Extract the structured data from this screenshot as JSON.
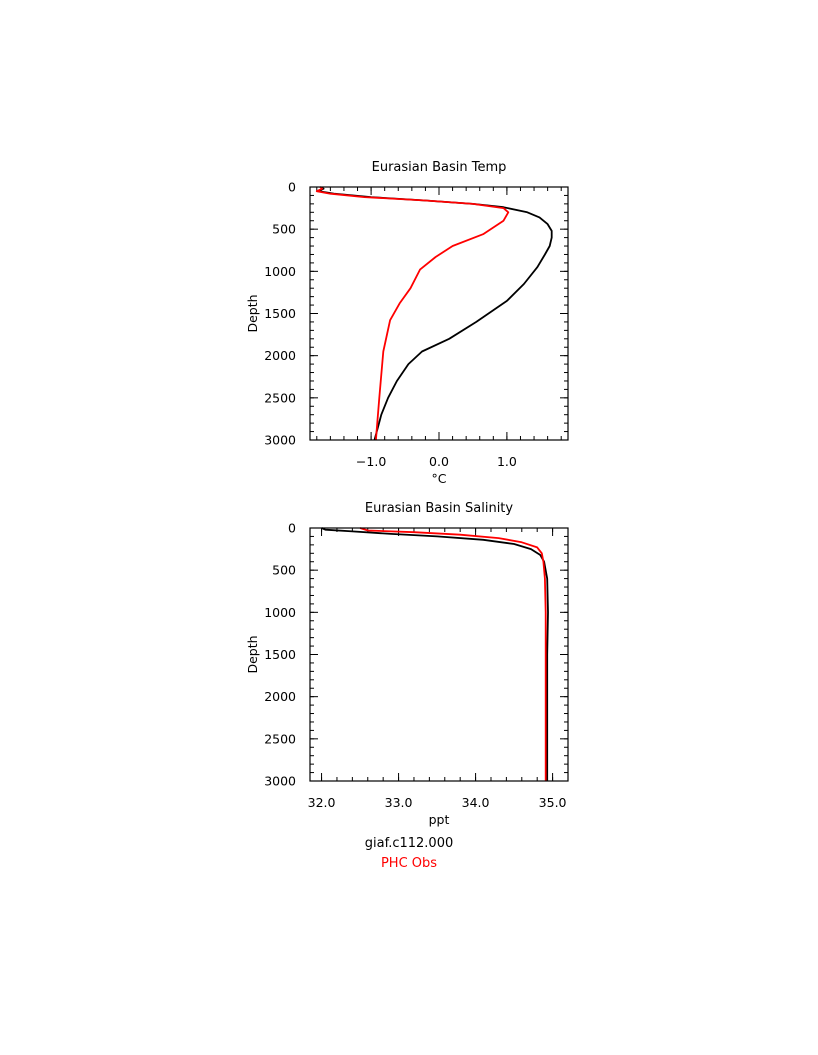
{
  "chart_data": [
    {
      "type": "line",
      "title": "Eurasian Basin Temp",
      "xlabel": "°C",
      "ylabel": "Depth",
      "xlim": [
        -1.9,
        1.9
      ],
      "ylim": [
        3000,
        0
      ],
      "y_inverted": true,
      "xticks": [
        -1.0,
        0.0,
        1.0
      ],
      "xtick_labels": [
        "−1.0",
        "0.0",
        "1.0"
      ],
      "yticks": [
        0,
        500,
        1000,
        1500,
        2000,
        2500,
        3000
      ],
      "ytick_labels": [
        "0",
        "500",
        "1000",
        "1500",
        "2000",
        "2500",
        "3000"
      ],
      "grid": false,
      "series": [
        {
          "name": "giaf.c112.000",
          "color": "#000000",
          "points": [
            [
              -1.75,
              0
            ],
            [
              -1.7,
              20
            ],
            [
              -1.78,
              50
            ],
            [
              -1.55,
              80
            ],
            [
              -1.0,
              120
            ],
            [
              -0.2,
              160
            ],
            [
              0.5,
              200
            ],
            [
              0.95,
              240
            ],
            [
              1.3,
              300
            ],
            [
              1.48,
              360
            ],
            [
              1.6,
              440
            ],
            [
              1.66,
              520
            ],
            [
              1.66,
              600
            ],
            [
              1.63,
              700
            ],
            [
              1.56,
              800
            ],
            [
              1.45,
              950
            ],
            [
              1.25,
              1150
            ],
            [
              1.0,
              1350
            ],
            [
              0.55,
              1600
            ],
            [
              0.15,
              1800
            ],
            [
              -0.25,
              1950
            ],
            [
              -0.45,
              2100
            ],
            [
              -0.62,
              2300
            ],
            [
              -0.75,
              2500
            ],
            [
              -0.85,
              2700
            ],
            [
              -0.95,
              3000
            ]
          ]
        },
        {
          "name": "PHC Obs",
          "color": "#ff0000",
          "points": [
            [
              -1.75,
              0
            ],
            [
              -1.72,
              20
            ],
            [
              -1.8,
              50
            ],
            [
              -1.6,
              80
            ],
            [
              -1.1,
              120
            ],
            [
              -0.2,
              160
            ],
            [
              0.5,
              200
            ],
            [
              0.95,
              250
            ],
            [
              1.02,
              300
            ],
            [
              0.95,
              400
            ],
            [
              0.65,
              560
            ],
            [
              0.2,
              700
            ],
            [
              -0.05,
              830
            ],
            [
              -0.28,
              980
            ],
            [
              -0.42,
              1200
            ],
            [
              -0.58,
              1380
            ],
            [
              -0.72,
              1580
            ],
            [
              -0.82,
              1950
            ],
            [
              -0.88,
              2500
            ],
            [
              -0.93,
              3000
            ]
          ]
        }
      ]
    },
    {
      "type": "line",
      "title": "Eurasian Basin Salinity",
      "xlabel": "ppt",
      "ylabel": "Depth",
      "xlim": [
        31.85,
        35.2
      ],
      "ylim": [
        3000,
        0
      ],
      "y_inverted": true,
      "xticks": [
        32.0,
        33.0,
        34.0,
        35.0
      ],
      "xtick_labels": [
        "32.0",
        "33.0",
        "34.0",
        "35.0"
      ],
      "yticks": [
        0,
        500,
        1000,
        1500,
        2000,
        2500,
        3000
      ],
      "ytick_labels": [
        "0",
        "500",
        "1000",
        "1500",
        "2000",
        "2500",
        "3000"
      ],
      "grid": false,
      "series": [
        {
          "name": "giaf.c112.000",
          "color": "#000000",
          "points": [
            [
              32.0,
              0
            ],
            [
              32.05,
              20
            ],
            [
              32.4,
              40
            ],
            [
              32.9,
              70
            ],
            [
              33.5,
              100
            ],
            [
              34.1,
              140
            ],
            [
              34.5,
              190
            ],
            [
              34.72,
              250
            ],
            [
              34.84,
              320
            ],
            [
              34.89,
              400
            ],
            [
              34.93,
              600
            ],
            [
              34.94,
              1000
            ],
            [
              34.93,
              1500
            ],
            [
              34.93,
              2000
            ],
            [
              34.93,
              2500
            ],
            [
              34.93,
              3000
            ]
          ]
        },
        {
          "name": "PHC Obs",
          "color": "#ff0000",
          "points": [
            [
              32.5,
              0
            ],
            [
              32.6,
              30
            ],
            [
              33.2,
              50
            ],
            [
              33.8,
              80
            ],
            [
              34.3,
              120
            ],
            [
              34.6,
              170
            ],
            [
              34.8,
              230
            ],
            [
              34.86,
              300
            ],
            [
              34.88,
              400
            ],
            [
              34.9,
              600
            ],
            [
              34.91,
              1000
            ],
            [
              34.91,
              2000
            ],
            [
              34.91,
              3000
            ]
          ]
        }
      ]
    }
  ],
  "legend": {
    "items": [
      {
        "label": "giaf.c112.000",
        "color": "#000000"
      },
      {
        "label": "PHC Obs",
        "color": "#ff0000"
      }
    ]
  }
}
